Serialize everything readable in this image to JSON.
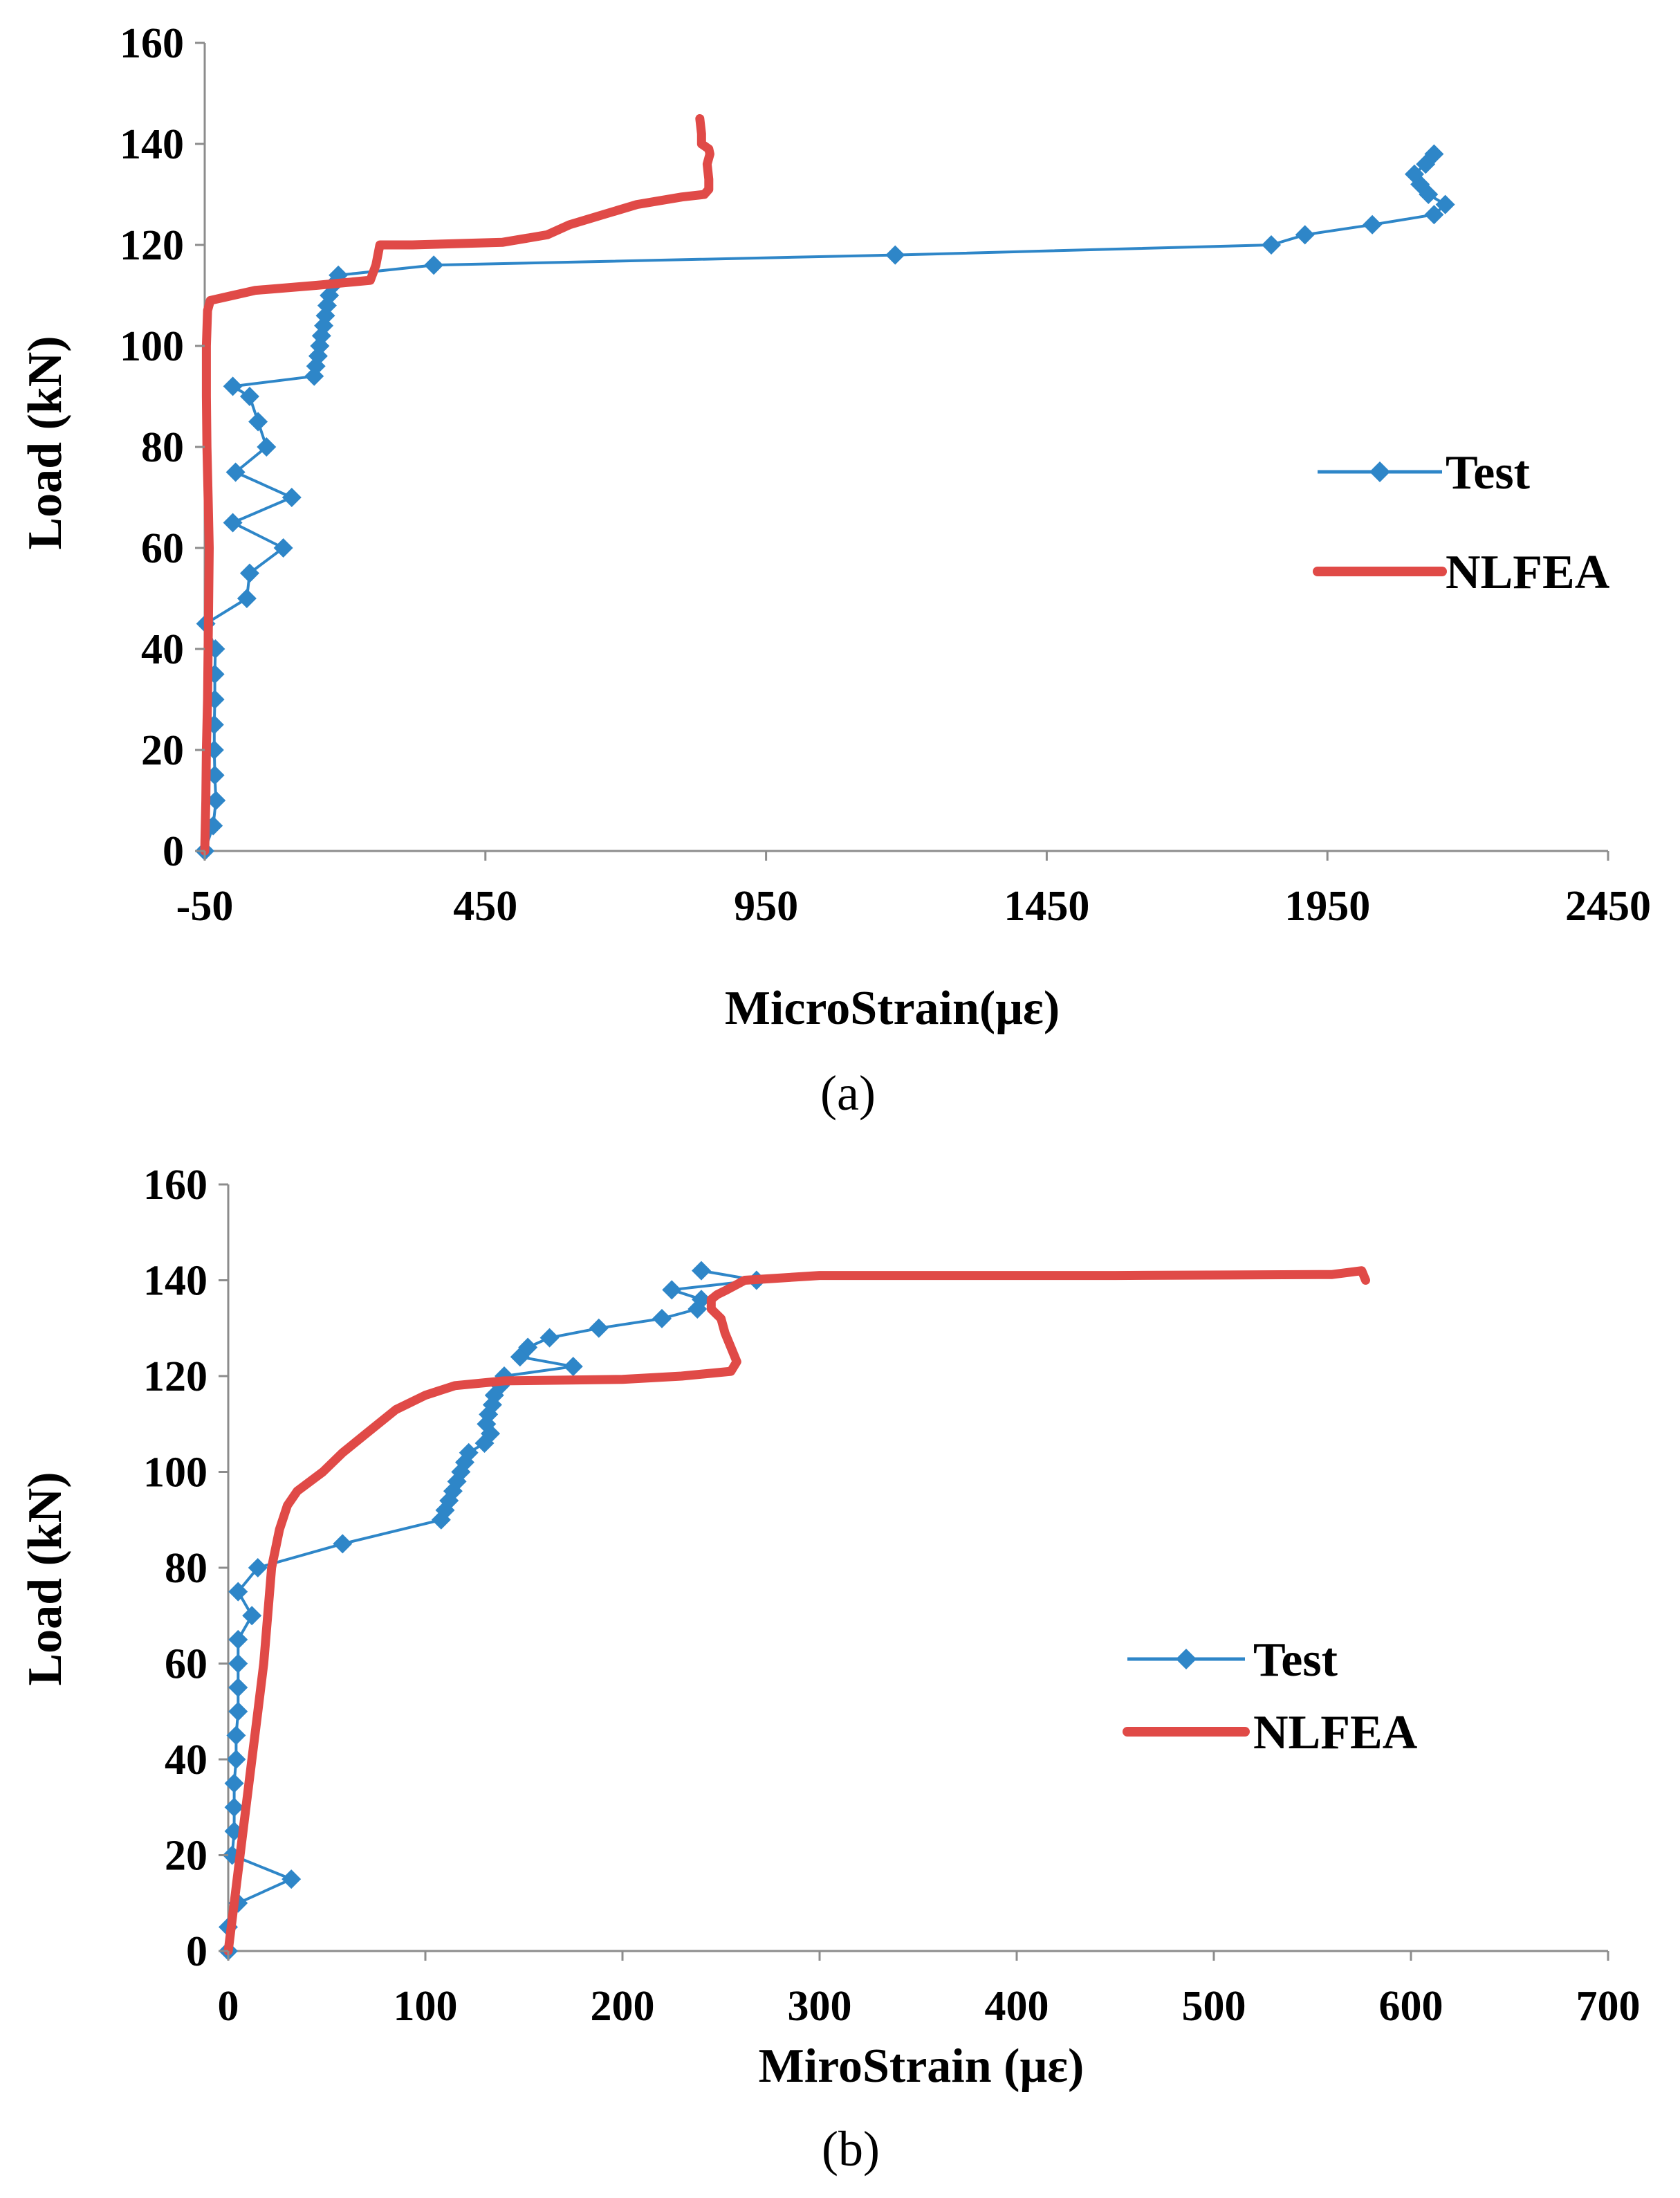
{
  "charts": [
    {
      "caption": "(a)"
    },
    {
      "caption": "(b)"
    }
  ],
  "chart_data": [
    {
      "type": "line",
      "caption": "(a)",
      "xlabel": "MicroStrain(με)",
      "ylabel": "Load (kN)",
      "xlim": [
        -50,
        2450
      ],
      "ylim": [
        0,
        160
      ],
      "xticks": [
        -50,
        450,
        950,
        1450,
        1950,
        2450
      ],
      "yticks": [
        0,
        20,
        40,
        60,
        80,
        100,
        120,
        140,
        160
      ],
      "legend_position": "right-middle",
      "series": [
        {
          "name": "Test",
          "color": "#2E86C8",
          "marker": "diamond",
          "points": [
            [
              -50,
              0
            ],
            [
              -35,
              5
            ],
            [
              -30,
              10
            ],
            [
              -32,
              15
            ],
            [
              -33,
              20
            ],
            [
              -33,
              25
            ],
            [
              -32,
              30
            ],
            [
              -32,
              35
            ],
            [
              -31,
              40
            ],
            [
              -48,
              45
            ],
            [
              25,
              50
            ],
            [
              30,
              55
            ],
            [
              90,
              60
            ],
            [
              0,
              65
            ],
            [
              105,
              70
            ],
            [
              5,
              75
            ],
            [
              60,
              80
            ],
            [
              45,
              85
            ],
            [
              30,
              90
            ],
            [
              0,
              92
            ],
            [
              145,
              94
            ],
            [
              148,
              96
            ],
            [
              152,
              98
            ],
            [
              155,
              100
            ],
            [
              158,
              102
            ],
            [
              162,
              104
            ],
            [
              165,
              106
            ],
            [
              168,
              108
            ],
            [
              172,
              110
            ],
            [
              178,
              112
            ],
            [
              188,
              114
            ],
            [
              358,
              116
            ],
            [
              1180,
              118
            ],
            [
              1850,
              120
            ],
            [
              1910,
              122
            ],
            [
              2030,
              124
            ],
            [
              2140,
              126
            ],
            [
              2160,
              128
            ],
            [
              2130,
              130
            ],
            [
              2115,
              132
            ],
            [
              2105,
              134
            ],
            [
              2125,
              136
            ],
            [
              2140,
              138
            ]
          ]
        },
        {
          "name": "NLFEA",
          "color": "#E04A47",
          "points": [
            [
              -50,
              0
            ],
            [
              -48,
              10
            ],
            [
              -47,
              20
            ],
            [
              -45,
              30
            ],
            [
              -44,
              40
            ],
            [
              -43,
              50
            ],
            [
              -42,
              60
            ],
            [
              -44,
              70
            ],
            [
              -46,
              80
            ],
            [
              -47,
              90
            ],
            [
              -47,
              100
            ],
            [
              -45,
              107
            ],
            [
              -40,
              109
            ],
            [
              0,
              110
            ],
            [
              40,
              111
            ],
            [
              150,
              112
            ],
            [
              245,
              113
            ],
            [
              255,
              116
            ],
            [
              262,
              120
            ],
            [
              320,
              120
            ],
            [
              480,
              120.5
            ],
            [
              560,
              122
            ],
            [
              600,
              124
            ],
            [
              660,
              126
            ],
            [
              720,
              128
            ],
            [
              800,
              129.5
            ],
            [
              840,
              130
            ],
            [
              848,
              131
            ],
            [
              848,
              133
            ],
            [
              845,
              136
            ],
            [
              850,
              138
            ],
            [
              848,
              139
            ],
            [
              835,
              140
            ],
            [
              835,
              142
            ],
            [
              832,
              145
            ]
          ]
        }
      ]
    },
    {
      "type": "line",
      "caption": "(b)",
      "xlabel": "MiroStrain (με)",
      "ylabel": "Load (kN)",
      "xlim": [
        0,
        700
      ],
      "ylim": [
        0,
        160
      ],
      "xticks": [
        0,
        100,
        200,
        300,
        400,
        500,
        600,
        700
      ],
      "yticks": [
        0,
        20,
        40,
        60,
        80,
        100,
        120,
        140,
        160
      ],
      "legend_position": "right-bottom",
      "series": [
        {
          "name": "Test",
          "color": "#2E86C8",
          "marker": "diamond",
          "points": [
            [
              0,
              0
            ],
            [
              0,
              5
            ],
            [
              5,
              10
            ],
            [
              32,
              15
            ],
            [
              2,
              20
            ],
            [
              3,
              25
            ],
            [
              3,
              30
            ],
            [
              3,
              35
            ],
            [
              4,
              40
            ],
            [
              4,
              45
            ],
            [
              5,
              50
            ],
            [
              5,
              55
            ],
            [
              5,
              60
            ],
            [
              5,
              65
            ],
            [
              12,
              70
            ],
            [
              5,
              75
            ],
            [
              15,
              80
            ],
            [
              58,
              85
            ],
            [
              108,
              90
            ],
            [
              110,
              92
            ],
            [
              112,
              94
            ],
            [
              114,
              96
            ],
            [
              116,
              98
            ],
            [
              118,
              100
            ],
            [
              120,
              102
            ],
            [
              122,
              104
            ],
            [
              130,
              106
            ],
            [
              133,
              108
            ],
            [
              131,
              110
            ],
            [
              132,
              112
            ],
            [
              134,
              114
            ],
            [
              135,
              116
            ],
            [
              138,
              118
            ],
            [
              140,
              120
            ],
            [
              175,
              122
            ],
            [
              148,
              124
            ],
            [
              152,
              126
            ],
            [
              163,
              128
            ],
            [
              188,
              130
            ],
            [
              220,
              132
            ],
            [
              238,
              134
            ],
            [
              240,
              136
            ],
            [
              225,
              138
            ],
            [
              268,
              140
            ],
            [
              240,
              142
            ]
          ]
        },
        {
          "name": "NLFEA",
          "color": "#E04A47",
          "points": [
            [
              0,
              0
            ],
            [
              3,
              10
            ],
            [
              6,
              20
            ],
            [
              9,
              30
            ],
            [
              12,
              40
            ],
            [
              15,
              50
            ],
            [
              18,
              60
            ],
            [
              20,
              70
            ],
            [
              22,
              80
            ],
            [
              26,
              88
            ],
            [
              30,
              93
            ],
            [
              35,
              96
            ],
            [
              48,
              100
            ],
            [
              58,
              104
            ],
            [
              70,
              108
            ],
            [
              85,
              113
            ],
            [
              100,
              116
            ],
            [
              115,
              118
            ],
            [
              140,
              119
            ],
            [
              200,
              119.3
            ],
            [
              230,
              120
            ],
            [
              255,
              121
            ],
            [
              258,
              123
            ],
            [
              255,
              126
            ],
            [
              252,
              129
            ],
            [
              250,
              132
            ],
            [
              245,
              134
            ],
            [
              245,
              136
            ],
            [
              248,
              137
            ],
            [
              253,
              138
            ],
            [
              262,
              140
            ],
            [
              300,
              141
            ],
            [
              450,
              141
            ],
            [
              560,
              141.2
            ],
            [
              575,
              142
            ],
            [
              577,
              140
            ]
          ]
        }
      ]
    }
  ]
}
